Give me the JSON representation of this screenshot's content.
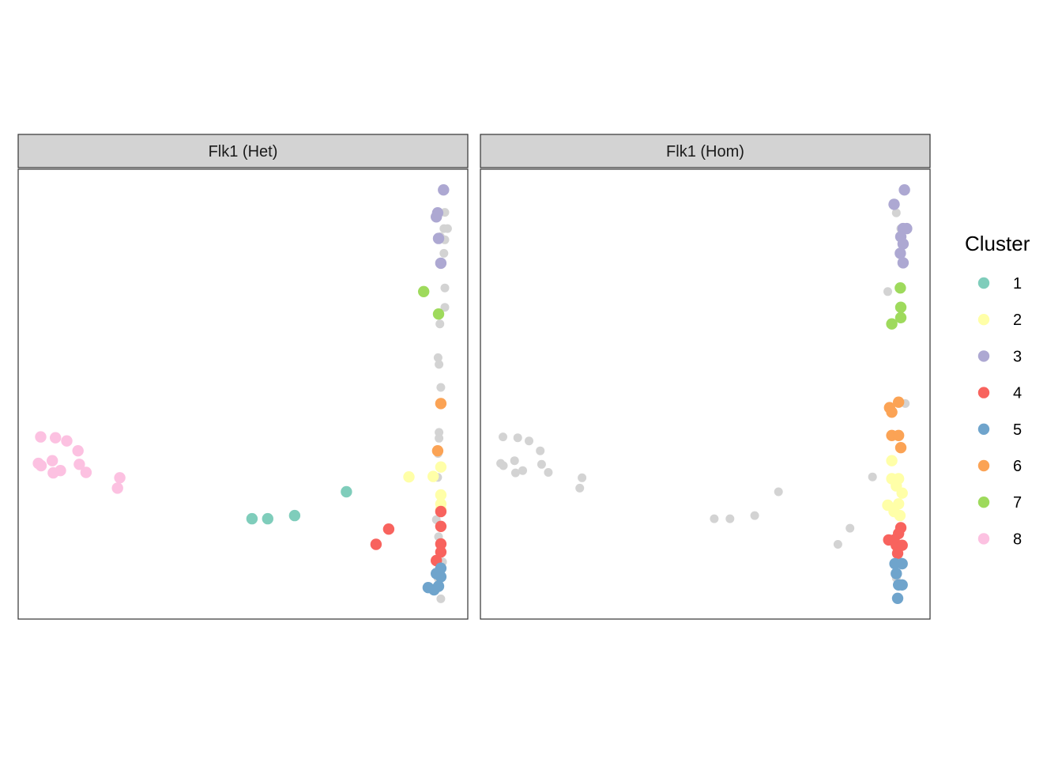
{
  "chart_data": {
    "type": "scatter",
    "axes_shown": false,
    "grid": false,
    "legend": {
      "title": "Cluster",
      "placement": "right",
      "entries": [
        {
          "name": "1",
          "color": "#7FCDBB"
        },
        {
          "name": "2",
          "color": "#FFFFA8"
        },
        {
          "name": "3",
          "color": "#ADA8D2"
        },
        {
          "name": "4",
          "color": "#F8635E"
        },
        {
          "name": "5",
          "color": "#6FA4CC"
        },
        {
          "name": "6",
          "color": "#FBA355"
        },
        {
          "name": "7",
          "color": "#9EDA5C"
        },
        {
          "name": "8",
          "color": "#FCC1E1"
        }
      ]
    },
    "background_point_color": "#D3D3D3",
    "xlim": [
      0,
      100
    ],
    "ylim": [
      0,
      100
    ],
    "panels": [
      {
        "title": "Flk1 (Het)",
        "points": [
          {
            "x": 94.6,
            "y": 95.4,
            "c": "bg"
          },
          {
            "x": 94.9,
            "y": 90.4,
            "c": "bg"
          },
          {
            "x": 94.7,
            "y": 86.8,
            "c": "bg"
          },
          {
            "x": 95.5,
            "y": 86.8,
            "c": "bg"
          },
          {
            "x": 93.9,
            "y": 85.0,
            "c": "bg"
          },
          {
            "x": 94.9,
            "y": 84.3,
            "c": "bg"
          },
          {
            "x": 94.7,
            "y": 81.3,
            "c": "bg"
          },
          {
            "x": 94.9,
            "y": 73.6,
            "c": "bg"
          },
          {
            "x": 94.9,
            "y": 69.3,
            "c": "bg"
          },
          {
            "x": 93.8,
            "y": 65.6,
            "c": "bg"
          },
          {
            "x": 93.4,
            "y": 58.1,
            "c": "bg"
          },
          {
            "x": 93.6,
            "y": 56.6,
            "c": "bg"
          },
          {
            "x": 94.0,
            "y": 51.5,
            "c": "bg"
          },
          {
            "x": 93.6,
            "y": 41.5,
            "c": "bg"
          },
          {
            "x": 93.6,
            "y": 40.2,
            "c": "bg"
          },
          {
            "x": 93.4,
            "y": 36.8,
            "c": "bg"
          },
          {
            "x": 93.3,
            "y": 31.5,
            "c": "bg"
          },
          {
            "x": 93.0,
            "y": 22.1,
            "c": "bg"
          },
          {
            "x": 94.0,
            "y": 20.7,
            "c": "bg"
          },
          {
            "x": 93.5,
            "y": 18.3,
            "c": "bg"
          },
          {
            "x": 94.4,
            "y": 12.7,
            "c": "bg"
          },
          {
            "x": 93.4,
            "y": 9.1,
            "c": "bg"
          },
          {
            "x": 94.0,
            "y": 4.5,
            "c": "bg"
          },
          {
            "x": 94.0,
            "y": 33.8,
            "c": "2"
          },
          {
            "x": 92.3,
            "y": 31.7,
            "c": "2"
          },
          {
            "x": 94.0,
            "y": 27.6,
            "c": "2"
          },
          {
            "x": 94.0,
            "y": 25.6,
            "c": "2"
          },
          {
            "x": 94.0,
            "y": 24.3,
            "c": "2"
          },
          {
            "x": 86.9,
            "y": 31.6,
            "c": "2"
          },
          {
            "x": 94.0,
            "y": 23.9,
            "c": "4"
          },
          {
            "x": 94.0,
            "y": 20.6,
            "c": "4"
          },
          {
            "x": 94.0,
            "y": 16.7,
            "c": "4"
          },
          {
            "x": 94.0,
            "y": 14.9,
            "c": "4"
          },
          {
            "x": 93.0,
            "y": 13.0,
            "c": "4"
          },
          {
            "x": 82.4,
            "y": 20.0,
            "c": "4"
          },
          {
            "x": 79.6,
            "y": 16.6,
            "c": "4"
          },
          {
            "x": 94.0,
            "y": 11.3,
            "c": "5"
          },
          {
            "x": 93.0,
            "y": 10.1,
            "c": "5"
          },
          {
            "x": 94.0,
            "y": 9.4,
            "c": "5"
          },
          {
            "x": 93.5,
            "y": 7.3,
            "c": "5"
          },
          {
            "x": 91.2,
            "y": 7.0,
            "c": "5"
          },
          {
            "x": 92.5,
            "y": 6.5,
            "c": "5"
          },
          {
            "x": 94.6,
            "y": 95.4,
            "c": "3"
          },
          {
            "x": 93.3,
            "y": 90.3,
            "c": "3"
          },
          {
            "x": 93.0,
            "y": 89.4,
            "c": "3"
          },
          {
            "x": 93.5,
            "y": 84.6,
            "c": "3"
          },
          {
            "x": 94.0,
            "y": 79.1,
            "c": "3"
          },
          {
            "x": 90.2,
            "y": 72.8,
            "c": "7"
          },
          {
            "x": 93.5,
            "y": 67.8,
            "c": "7"
          },
          {
            "x": 94.0,
            "y": 47.9,
            "c": "6"
          },
          {
            "x": 93.3,
            "y": 37.4,
            "c": "6"
          },
          {
            "x": 73.0,
            "y": 28.3,
            "c": "1"
          },
          {
            "x": 61.5,
            "y": 23.0,
            "c": "1"
          },
          {
            "x": 55.5,
            "y": 22.3,
            "c": "1"
          },
          {
            "x": 52.0,
            "y": 22.3,
            "c": "1"
          },
          {
            "x": 5.0,
            "y": 40.5,
            "c": "8"
          },
          {
            "x": 8.3,
            "y": 40.3,
            "c": "8"
          },
          {
            "x": 10.8,
            "y": 39.6,
            "c": "8"
          },
          {
            "x": 13.3,
            "y": 37.4,
            "c": "8"
          },
          {
            "x": 7.6,
            "y": 35.2,
            "c": "8"
          },
          {
            "x": 4.5,
            "y": 34.6,
            "c": "8"
          },
          {
            "x": 5.1,
            "y": 34.1,
            "c": "8"
          },
          {
            "x": 13.6,
            "y": 34.4,
            "c": "8"
          },
          {
            "x": 9.4,
            "y": 33.0,
            "c": "8"
          },
          {
            "x": 7.8,
            "y": 32.5,
            "c": "8"
          },
          {
            "x": 15.1,
            "y": 32.6,
            "c": "8"
          },
          {
            "x": 22.6,
            "y": 31.4,
            "c": "8"
          },
          {
            "x": 22.1,
            "y": 29.1,
            "c": "8"
          }
        ]
      },
      {
        "title": "Flk1 (Hom)",
        "points": [
          {
            "x": 5.0,
            "y": 40.5,
            "c": "bg"
          },
          {
            "x": 8.3,
            "y": 40.3,
            "c": "bg"
          },
          {
            "x": 10.8,
            "y": 39.6,
            "c": "bg"
          },
          {
            "x": 13.3,
            "y": 37.4,
            "c": "bg"
          },
          {
            "x": 7.6,
            "y": 35.2,
            "c": "bg"
          },
          {
            "x": 4.5,
            "y": 34.6,
            "c": "bg"
          },
          {
            "x": 5.1,
            "y": 34.1,
            "c": "bg"
          },
          {
            "x": 13.6,
            "y": 34.4,
            "c": "bg"
          },
          {
            "x": 9.4,
            "y": 33.0,
            "c": "bg"
          },
          {
            "x": 7.8,
            "y": 32.5,
            "c": "bg"
          },
          {
            "x": 15.1,
            "y": 32.6,
            "c": "bg"
          },
          {
            "x": 22.6,
            "y": 31.4,
            "c": "bg"
          },
          {
            "x": 22.1,
            "y": 29.1,
            "c": "bg"
          },
          {
            "x": 66.3,
            "y": 28.3,
            "c": "bg"
          },
          {
            "x": 61.0,
            "y": 23.0,
            "c": "bg"
          },
          {
            "x": 55.5,
            "y": 22.3,
            "c": "bg"
          },
          {
            "x": 52.0,
            "y": 22.3,
            "c": "bg"
          },
          {
            "x": 82.2,
            "y": 20.2,
            "c": "bg"
          },
          {
            "x": 79.5,
            "y": 16.6,
            "c": "bg"
          },
          {
            "x": 87.2,
            "y": 31.6,
            "c": "bg"
          },
          {
            "x": 90.6,
            "y": 72.8,
            "c": "bg"
          },
          {
            "x": 92.5,
            "y": 90.3,
            "c": "bg"
          },
          {
            "x": 93.5,
            "y": 86.8,
            "c": "bg"
          },
          {
            "x": 94.5,
            "y": 47.9,
            "c": "bg"
          },
          {
            "x": 92.5,
            "y": 9.1,
            "c": "bg"
          },
          {
            "x": 93.5,
            "y": 12.7,
            "c": "bg"
          },
          {
            "x": 94.3,
            "y": 95.4,
            "c": "3"
          },
          {
            "x": 92.0,
            "y": 92.2,
            "c": "3"
          },
          {
            "x": 94.0,
            "y": 86.8,
            "c": "3"
          },
          {
            "x": 94.8,
            "y": 86.8,
            "c": "3"
          },
          {
            "x": 93.5,
            "y": 85.0,
            "c": "3"
          },
          {
            "x": 94.0,
            "y": 83.4,
            "c": "3"
          },
          {
            "x": 93.4,
            "y": 81.3,
            "c": "3"
          },
          {
            "x": 94.0,
            "y": 79.2,
            "c": "3"
          },
          {
            "x": 93.4,
            "y": 73.6,
            "c": "7"
          },
          {
            "x": 93.5,
            "y": 69.3,
            "c": "7"
          },
          {
            "x": 93.5,
            "y": 67.0,
            "c": "7"
          },
          {
            "x": 91.5,
            "y": 65.6,
            "c": "7"
          },
          {
            "x": 93.0,
            "y": 48.2,
            "c": "6"
          },
          {
            "x": 91.0,
            "y": 47.0,
            "c": "6"
          },
          {
            "x": 91.5,
            "y": 46.0,
            "c": "6"
          },
          {
            "x": 91.5,
            "y": 40.8,
            "c": "6"
          },
          {
            "x": 93.0,
            "y": 40.8,
            "c": "6"
          },
          {
            "x": 93.5,
            "y": 38.1,
            "c": "6"
          },
          {
            "x": 91.5,
            "y": 35.2,
            "c": "2"
          },
          {
            "x": 91.5,
            "y": 31.2,
            "c": "2"
          },
          {
            "x": 93.0,
            "y": 31.2,
            "c": "2"
          },
          {
            "x": 92.5,
            "y": 29.6,
            "c": "2"
          },
          {
            "x": 93.8,
            "y": 28.0,
            "c": "2"
          },
          {
            "x": 90.6,
            "y": 25.3,
            "c": "2"
          },
          {
            "x": 93.0,
            "y": 25.6,
            "c": "2"
          },
          {
            "x": 92.0,
            "y": 23.9,
            "c": "2"
          },
          {
            "x": 93.3,
            "y": 23.0,
            "c": "2"
          },
          {
            "x": 93.5,
            "y": 20.3,
            "c": "4"
          },
          {
            "x": 93.0,
            "y": 19.0,
            "c": "4"
          },
          {
            "x": 90.8,
            "y": 17.6,
            "c": "4"
          },
          {
            "x": 92.0,
            "y": 17.6,
            "c": "4"
          },
          {
            "x": 92.5,
            "y": 16.4,
            "c": "4"
          },
          {
            "x": 93.8,
            "y": 16.4,
            "c": "4"
          },
          {
            "x": 92.8,
            "y": 14.6,
            "c": "4"
          },
          {
            "x": 92.2,
            "y": 12.3,
            "c": "5"
          },
          {
            "x": 93.8,
            "y": 12.3,
            "c": "5"
          },
          {
            "x": 92.5,
            "y": 10.1,
            "c": "5"
          },
          {
            "x": 93.0,
            "y": 7.6,
            "c": "5"
          },
          {
            "x": 93.8,
            "y": 7.6,
            "c": "5"
          },
          {
            "x": 92.8,
            "y": 4.6,
            "c": "5"
          }
        ]
      }
    ]
  }
}
